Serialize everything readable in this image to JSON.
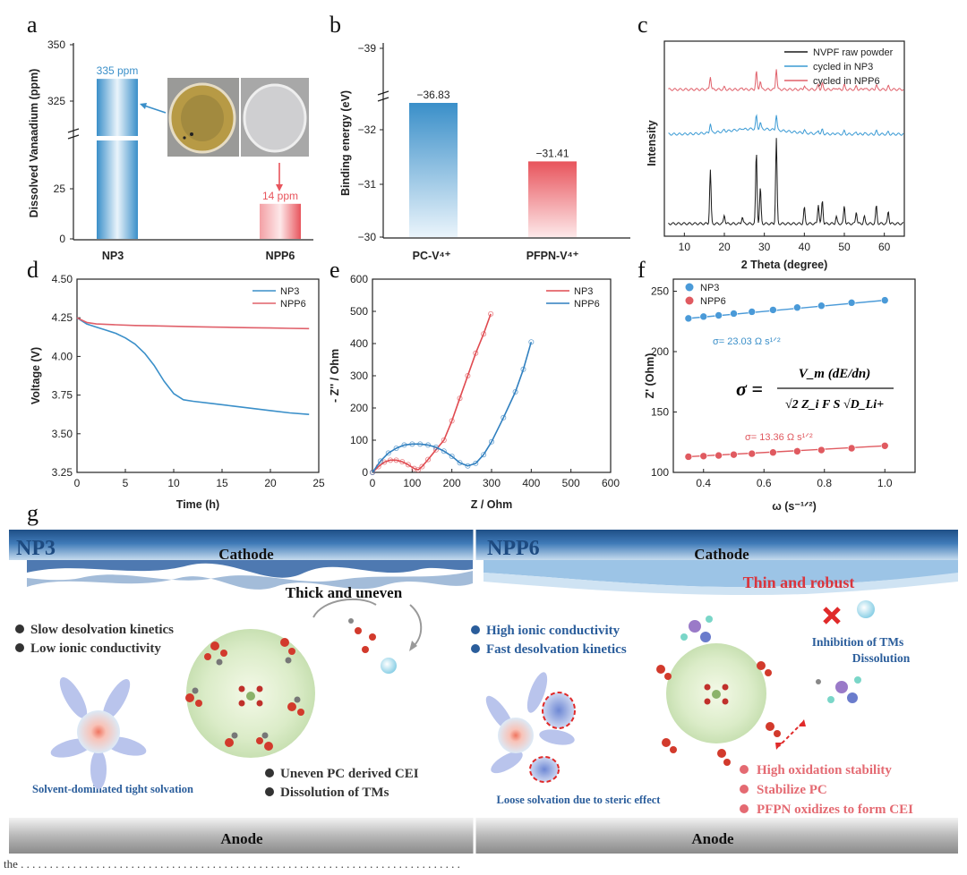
{
  "figure": {
    "caption": "the . . . . . . . . . . . . . . . . . . . . . . . . . . . . . . . . . . . . . . . . . . . . . . . . . . . . . . . . . . . . . . . . . . . . . . . . . . . .",
    "letters": {
      "a": "a",
      "b": "b",
      "c": "c",
      "d": "d",
      "e": "e",
      "f": "f",
      "g": "g"
    }
  },
  "chart_data": [
    {
      "panel": "a",
      "type": "bar",
      "ylabel": "Dissolved Vanaadium (ppm)",
      "categories": [
        "NP3",
        "NPP6"
      ],
      "values": [
        335,
        14
      ],
      "data_labels": [
        "335 ppm",
        "14 ppm"
      ],
      "ytick_labels_low": [
        "0",
        "25"
      ],
      "ytick_labels_high": [
        "325",
        "350"
      ],
      "axis_break": [
        40,
        310
      ],
      "colors": [
        "#3a8fc9",
        "#e8545c"
      ]
    },
    {
      "panel": "b",
      "type": "bar",
      "ylabel": "Binding energy (eV)",
      "categories": [
        "PC-V⁴⁺",
        "PFPN-V⁴⁺"
      ],
      "values": [
        -36.83,
        -31.41
      ],
      "data_labels": [
        "−36.83",
        "−31.41"
      ],
      "ytick_labels": [
        "−30",
        "−31",
        "−32",
        "−39"
      ],
      "colors": [
        "#3a8fc9",
        "#e8545c"
      ]
    },
    {
      "panel": "c",
      "type": "line",
      "xlabel": "2 Theta (degree)",
      "ylabel": "Intensity",
      "xlim": [
        5,
        65
      ],
      "xticks": [
        10,
        20,
        30,
        40,
        50,
        60
      ],
      "series": [
        {
          "name": "NVPF raw powder",
          "color": "#1a1a1a"
        },
        {
          "name": "cycled in NP3",
          "color": "#3a9ad4"
        },
        {
          "name": "cycled in NPP6",
          "color": "#e0606a"
        }
      ]
    },
    {
      "panel": "d",
      "type": "line",
      "xlabel": "Time (h)",
      "ylabel": "Voltage (V)",
      "xlim": [
        0,
        25
      ],
      "ylim": [
        3.25,
        4.5
      ],
      "xticks": [
        0,
        5,
        10,
        15,
        20,
        25
      ],
      "yticks": [
        3.25,
        3.5,
        3.75,
        4.0,
        4.25,
        4.5
      ],
      "ytick_labels": [
        "3.25",
        "3.50",
        "3.75",
        "4.00",
        "4.25",
        "4.50"
      ],
      "series": [
        {
          "name": "NP3",
          "color": "#3a8fc9",
          "x": [
            0,
            1,
            2,
            3,
            4,
            5,
            6,
            7,
            8,
            9,
            10,
            11,
            12,
            14,
            16,
            18,
            20,
            22,
            24
          ],
          "y": [
            4.25,
            4.21,
            4.19,
            4.17,
            4.15,
            4.12,
            4.08,
            4.02,
            3.94,
            3.84,
            3.76,
            3.72,
            3.71,
            3.695,
            3.68,
            3.665,
            3.65,
            3.635,
            3.625
          ]
        },
        {
          "name": "NPP6",
          "color": "#e0606a",
          "x": [
            0,
            1,
            2,
            4,
            6,
            8,
            10,
            12,
            14,
            16,
            18,
            20,
            22,
            24
          ],
          "y": [
            4.25,
            4.22,
            4.21,
            4.205,
            4.2,
            4.198,
            4.195,
            4.192,
            4.19,
            4.188,
            4.186,
            4.184,
            4.182,
            4.18
          ]
        }
      ]
    },
    {
      "panel": "e",
      "type": "scatter",
      "xlabel": "Z / Ohm",
      "ylabel": "- Z'' / Ohm",
      "xlim": [
        0,
        600
      ],
      "ylim": [
        0,
        600
      ],
      "xticks": [
        0,
        100,
        200,
        300,
        400,
        500,
        600
      ],
      "yticks": [
        0,
        100,
        200,
        300,
        400,
        500,
        600
      ],
      "series": [
        {
          "name": "NP3",
          "color": "#e04a50",
          "x": [
            0,
            15,
            30,
            45,
            60,
            75,
            90,
            105,
            115,
            125,
            140,
            160,
            180,
            200,
            220,
            240,
            260,
            280,
            298
          ],
          "y": [
            0,
            18,
            32,
            38,
            38,
            33,
            24,
            12,
            8,
            18,
            40,
            70,
            100,
            160,
            230,
            300,
            370,
            430,
            492
          ]
        },
        {
          "name": "NPP6",
          "color": "#2f7fbf",
          "x": [
            0,
            20,
            40,
            60,
            80,
            100,
            120,
            140,
            160,
            180,
            200,
            220,
            240,
            260,
            280,
            300,
            330,
            360,
            380,
            400
          ],
          "y": [
            0,
            35,
            60,
            75,
            85,
            88,
            88,
            85,
            78,
            66,
            50,
            30,
            20,
            28,
            55,
            95,
            170,
            250,
            320,
            405
          ]
        }
      ]
    },
    {
      "panel": "f",
      "type": "scatter",
      "xlabel": "ω (s⁻¹ᐟ²)",
      "ylabel": "Z' (Ohm)",
      "xlim": [
        0.3,
        1.1
      ],
      "ylim": [
        100,
        260
      ],
      "xticks": [
        0.4,
        0.6,
        0.8,
        1.0
      ],
      "yticks": [
        100,
        150,
        200,
        250
      ],
      "xtick_labels": [
        "0.4",
        "0.6",
        "0.8",
        "1.0"
      ],
      "series": [
        {
          "name": "NP3",
          "color": "#4a9ad8",
          "x": [
            0.35,
            0.4,
            0.45,
            0.5,
            0.56,
            0.63,
            0.71,
            0.79,
            0.89,
            1.0
          ],
          "y": [
            227.5,
            229,
            230,
            231.5,
            233,
            234.5,
            236.5,
            238,
            240.5,
            242.5
          ]
        },
        {
          "name": "NPP6",
          "color": "#e05a60",
          "x": [
            0.35,
            0.4,
            0.45,
            0.5,
            0.56,
            0.63,
            0.71,
            0.79,
            0.89,
            1.0
          ],
          "y": [
            113,
            113.5,
            114,
            114.7,
            115.5,
            116.5,
            117.5,
            118.5,
            120,
            122
          ]
        }
      ],
      "annotations": [
        "σ= 23.03 Ω s¹ᐟ²",
        "σ= 13.36 Ω s¹ᐟ²"
      ],
      "equation": {
        "lhs": "σ =",
        "numerator": "V_m (dE/dn)",
        "denominator": "√2 Z_i F S √D_Li+"
      }
    }
  ],
  "schematic_g": {
    "left": {
      "title": "NP3",
      "cathode": "Cathode",
      "anode": "Anode",
      "cei_label": "Thick and uneven",
      "bullets_top": [
        "Slow desolvation kinetics",
        "Low ionic conductivity"
      ],
      "bullets_bottom": [
        "Uneven PC derived CEI",
        "Dissolution of TMs"
      ],
      "solvation_label": "Solvent-dominated tight solvation"
    },
    "right": {
      "title": "NPP6",
      "cathode": "Cathode",
      "anode": "Anode",
      "cei_label": "Thin and robust",
      "bullets_top": [
        "High ionic conductivity",
        "Fast desolvation kinetics"
      ],
      "bullets_bottom": [
        "High oxidation stability",
        "Stabilize PC",
        "PFPN oxidizes to form CEI"
      ],
      "inhibit": "Inhibition of TMs",
      "inhibit2": "Dissolution",
      "solvation_label": "Loose solvation due to steric effect"
    },
    "colors": {
      "blue_text": "#2a5d9b",
      "red_text": "#d9363e",
      "pink_text": "#e46a72",
      "dark": "#333333"
    }
  }
}
